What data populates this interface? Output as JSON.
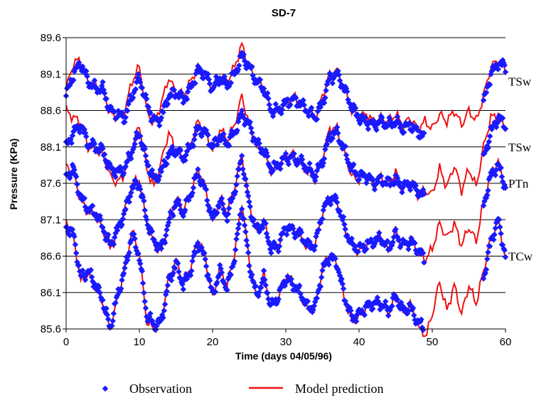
{
  "chart_data": {
    "type": "scatter",
    "title": "SD-7",
    "xlabel": "Time (days 04/05/96)",
    "ylabel": "Pressure (KPa)",
    "xlim": [
      0,
      60
    ],
    "ylim": [
      85.6,
      89.6
    ],
    "x_ticks": [
      "0",
      "10",
      "20",
      "30",
      "40",
      "50",
      "60"
    ],
    "y_ticks": [
      "85.6",
      "86.1",
      "86.6",
      "87.1",
      "87.6",
      "88.1",
      "88.6",
      "89.1",
      "89.6"
    ],
    "grid": "horizontal",
    "legend": {
      "position": "bottom",
      "entries": [
        "Observation",
        "Model prediction"
      ]
    },
    "colors": {
      "observation": "#1a1aff",
      "model": "#ee1111",
      "grid": "#000000"
    },
    "series_tags": [
      {
        "label": "TSw",
        "y": 89.0
      },
      {
        "label": "TSw",
        "y": 88.1
      },
      {
        "label": "PTn",
        "y": 87.6
      },
      {
        "label": "TCw",
        "y": 86.6
      }
    ],
    "series": [
      {
        "x": [
          0,
          1,
          2,
          3,
          4,
          5,
          6,
          7,
          8,
          9,
          10,
          11,
          12,
          13,
          14,
          15,
          16,
          17,
          18,
          19,
          20,
          21,
          22,
          23,
          24,
          25,
          26,
          27,
          28,
          29,
          30,
          31,
          32,
          33,
          34,
          35,
          36,
          37,
          38,
          39,
          40,
          41,
          42,
          43,
          44,
          45,
          46,
          47,
          48,
          49,
          50,
          51,
          52,
          53,
          54,
          55,
          56,
          57,
          58,
          59,
          60
        ],
        "observation": [
          88.8,
          89.1,
          89.25,
          89.0,
          88.9,
          88.9,
          88.6,
          88.55,
          88.5,
          88.8,
          89.05,
          88.7,
          88.45,
          88.5,
          88.8,
          88.85,
          88.75,
          88.9,
          89.15,
          89.1,
          88.9,
          89.05,
          88.95,
          89.1,
          89.35,
          89.2,
          89.0,
          88.9,
          88.6,
          88.6,
          88.7,
          88.75,
          88.7,
          88.6,
          88.5,
          88.7,
          89.05,
          89.1,
          88.9,
          88.65,
          88.5,
          88.45,
          88.4,
          88.45,
          88.4,
          88.45,
          88.35,
          88.4,
          88.3,
          88.25,
          null,
          null,
          null,
          null,
          null,
          null,
          null,
          88.7,
          89.1,
          89.25,
          89.2
        ],
        "model": [
          88.9,
          89.25,
          89.3,
          89.0,
          88.95,
          88.9,
          88.55,
          88.5,
          88.6,
          89.0,
          89.2,
          88.6,
          88.4,
          88.7,
          89.05,
          88.85,
          88.8,
          89.0,
          89.2,
          89.1,
          88.9,
          89.1,
          89.0,
          89.2,
          89.5,
          89.2,
          89.0,
          88.95,
          88.6,
          88.55,
          88.7,
          88.8,
          88.7,
          88.6,
          88.5,
          88.8,
          89.1,
          89.15,
          88.9,
          88.6,
          88.5,
          88.55,
          88.45,
          88.5,
          88.45,
          88.55,
          88.4,
          88.5,
          88.35,
          88.45,
          88.35,
          88.55,
          88.45,
          88.6,
          88.4,
          88.6,
          88.45,
          88.8,
          89.2,
          89.3,
          89.15
        ]
      },
      {
        "x": [
          0,
          1,
          2,
          3,
          4,
          5,
          6,
          7,
          8,
          9,
          10,
          11,
          12,
          13,
          14,
          15,
          16,
          17,
          18,
          19,
          20,
          21,
          22,
          23,
          24,
          25,
          26,
          27,
          28,
          29,
          30,
          31,
          32,
          33,
          34,
          35,
          36,
          37,
          38,
          39,
          40,
          41,
          42,
          43,
          44,
          45,
          46,
          47,
          48,
          49,
          50,
          51,
          52,
          53,
          54,
          55,
          56,
          57,
          58,
          59,
          60
        ],
        "observation": [
          88.1,
          88.3,
          88.4,
          88.15,
          88.1,
          88.05,
          87.8,
          87.75,
          87.8,
          88.05,
          88.3,
          87.9,
          87.65,
          87.75,
          88.0,
          88.05,
          87.95,
          88.1,
          88.35,
          88.3,
          88.1,
          88.25,
          88.15,
          88.3,
          88.55,
          88.4,
          88.15,
          88.05,
          87.8,
          87.85,
          87.95,
          87.95,
          87.9,
          87.8,
          87.7,
          87.9,
          88.25,
          88.3,
          88.05,
          87.8,
          87.7,
          87.7,
          87.6,
          87.65,
          87.6,
          87.65,
          87.55,
          87.6,
          87.5,
          87.4,
          null,
          null,
          null,
          null,
          null,
          null,
          null,
          87.95,
          88.3,
          88.5,
          88.4
        ],
        "model": [
          88.6,
          88.5,
          88.45,
          88.1,
          88.05,
          88.0,
          87.7,
          87.6,
          87.75,
          88.1,
          88.4,
          87.8,
          87.55,
          87.9,
          88.3,
          88.05,
          87.9,
          88.15,
          88.45,
          88.3,
          88.05,
          88.35,
          88.2,
          88.4,
          88.8,
          88.4,
          88.1,
          88.0,
          87.75,
          87.8,
          88.0,
          88.0,
          87.85,
          87.75,
          87.65,
          87.95,
          88.35,
          88.35,
          88.0,
          87.7,
          87.65,
          87.75,
          87.55,
          87.7,
          87.6,
          87.75,
          87.5,
          87.65,
          87.45,
          87.5,
          87.45,
          87.8,
          87.55,
          87.85,
          87.5,
          87.8,
          87.55,
          88.1,
          88.5,
          88.55,
          88.35
        ]
      },
      {
        "x": [
          0,
          1,
          2,
          3,
          4,
          5,
          6,
          7,
          8,
          9,
          10,
          11,
          12,
          13,
          14,
          15,
          16,
          17,
          18,
          19,
          20,
          21,
          22,
          23,
          24,
          25,
          26,
          27,
          28,
          29,
          30,
          31,
          32,
          33,
          34,
          35,
          36,
          37,
          38,
          39,
          40,
          41,
          42,
          43,
          44,
          45,
          46,
          47,
          48,
          49,
          50,
          51,
          52,
          53,
          54,
          55,
          56,
          57,
          58,
          59,
          60
        ],
        "observation": [
          87.7,
          87.8,
          87.4,
          87.25,
          87.2,
          87.0,
          86.75,
          86.95,
          87.2,
          87.55,
          87.6,
          87.1,
          86.8,
          86.7,
          87.05,
          87.35,
          87.2,
          87.45,
          87.75,
          87.5,
          87.1,
          87.35,
          87.15,
          87.5,
          87.95,
          87.3,
          86.95,
          87.05,
          86.7,
          86.75,
          87.0,
          86.95,
          86.9,
          86.75,
          86.75,
          87.2,
          87.4,
          87.35,
          87.0,
          86.75,
          86.7,
          86.75,
          86.8,
          86.85,
          86.7,
          86.9,
          86.75,
          86.8,
          86.7,
          86.55,
          null,
          null,
          null,
          null,
          null,
          null,
          null,
          87.3,
          87.7,
          87.85,
          87.55
        ],
        "model": [
          87.85,
          87.75,
          87.35,
          87.2,
          87.15,
          86.95,
          86.7,
          86.9,
          87.25,
          87.6,
          87.65,
          87.05,
          86.75,
          86.65,
          87.1,
          87.4,
          87.25,
          87.45,
          87.8,
          87.55,
          87.05,
          87.4,
          87.2,
          87.55,
          88.0,
          87.35,
          86.9,
          87.1,
          86.7,
          86.7,
          87.0,
          87.0,
          86.85,
          86.7,
          86.75,
          87.2,
          87.45,
          87.35,
          86.95,
          86.75,
          86.65,
          86.75,
          86.8,
          86.9,
          86.65,
          86.95,
          86.7,
          86.85,
          86.65,
          86.55,
          86.7,
          87.05,
          86.85,
          87.05,
          86.75,
          87.0,
          86.8,
          87.35,
          87.75,
          87.9,
          87.5
        ]
      },
      {
        "x": [
          0,
          1,
          2,
          3,
          4,
          5,
          6,
          7,
          8,
          9,
          10,
          11,
          12,
          13,
          14,
          15,
          16,
          17,
          18,
          19,
          20,
          21,
          22,
          23,
          24,
          25,
          26,
          27,
          28,
          29,
          30,
          31,
          32,
          33,
          34,
          35,
          36,
          37,
          38,
          39,
          40,
          41,
          42,
          43,
          44,
          45,
          46,
          47,
          48,
          49,
          50,
          51,
          52,
          53,
          54,
          55,
          56,
          57,
          58,
          59,
          60
        ],
        "observation": [
          87.0,
          86.9,
          86.3,
          86.4,
          86.2,
          86.0,
          85.6,
          86.05,
          86.4,
          86.9,
          86.6,
          85.8,
          85.65,
          85.7,
          86.25,
          86.5,
          86.2,
          86.4,
          86.8,
          86.55,
          86.05,
          86.4,
          86.15,
          86.6,
          87.3,
          86.5,
          86.05,
          86.3,
          85.9,
          86.05,
          86.3,
          86.2,
          86.1,
          85.9,
          85.9,
          86.4,
          86.6,
          86.5,
          86.05,
          85.75,
          85.8,
          85.9,
          85.95,
          85.95,
          85.85,
          86.05,
          85.85,
          85.9,
          85.7,
          85.6,
          null,
          null,
          null,
          null,
          null,
          null,
          null,
          86.3,
          86.8,
          87.1,
          86.6
        ],
        "model": [
          87.1,
          86.85,
          86.25,
          86.35,
          86.15,
          85.95,
          85.6,
          86.0,
          86.45,
          86.95,
          86.65,
          85.7,
          85.6,
          85.75,
          86.3,
          86.55,
          86.25,
          86.45,
          86.85,
          86.6,
          86.0,
          86.45,
          86.2,
          86.65,
          87.35,
          86.55,
          86.0,
          86.35,
          85.9,
          86.0,
          86.35,
          86.25,
          86.05,
          85.85,
          85.9,
          86.45,
          86.65,
          86.5,
          86.0,
          85.7,
          85.75,
          85.9,
          85.95,
          86.0,
          85.8,
          86.1,
          85.8,
          85.95,
          85.65,
          85.45,
          85.8,
          86.25,
          85.85,
          86.2,
          85.8,
          86.2,
          85.95,
          86.4,
          86.85,
          87.1,
          86.55
        ]
      }
    ]
  }
}
